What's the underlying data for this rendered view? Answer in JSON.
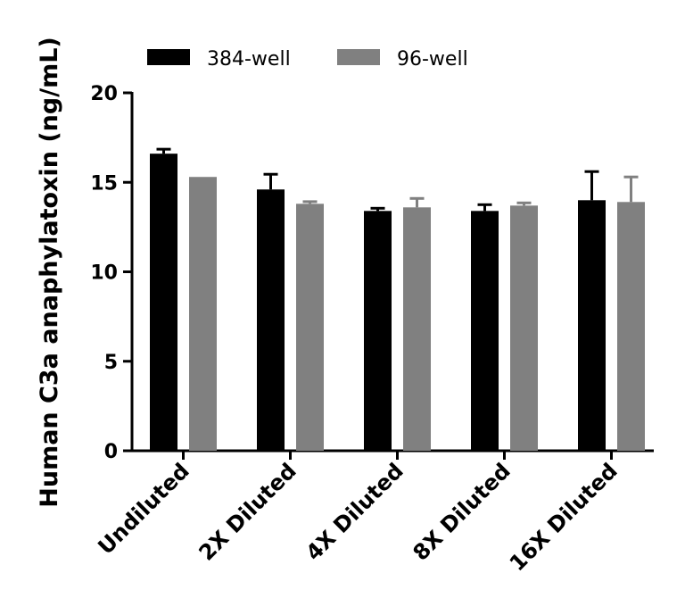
{
  "chart_data": {
    "type": "bar",
    "title": "",
    "xlabel": "",
    "ylabel": "Human C3a anaphylatoxin (ng/mL)",
    "ylim": [
      0,
      20
    ],
    "yticks": [
      "0",
      "5",
      "10",
      "15",
      "20"
    ],
    "categories": [
      "Undiluted",
      "2X Diluted",
      "4X Diluted",
      "8X Diluted",
      "16X Diluted"
    ],
    "series": [
      {
        "name": "384-well",
        "color": "#000000",
        "values": [
          16.6,
          14.6,
          13.4,
          13.4,
          14.0
        ],
        "errors": [
          0.25,
          0.85,
          0.15,
          0.35,
          1.6
        ]
      },
      {
        "name": "96-well",
        "color": "#808080",
        "values": [
          15.3,
          13.8,
          13.6,
          13.7,
          13.9
        ],
        "errors": [
          0.0,
          0.12,
          0.5,
          0.15,
          1.4
        ]
      }
    ],
    "legend_position": "top"
  }
}
